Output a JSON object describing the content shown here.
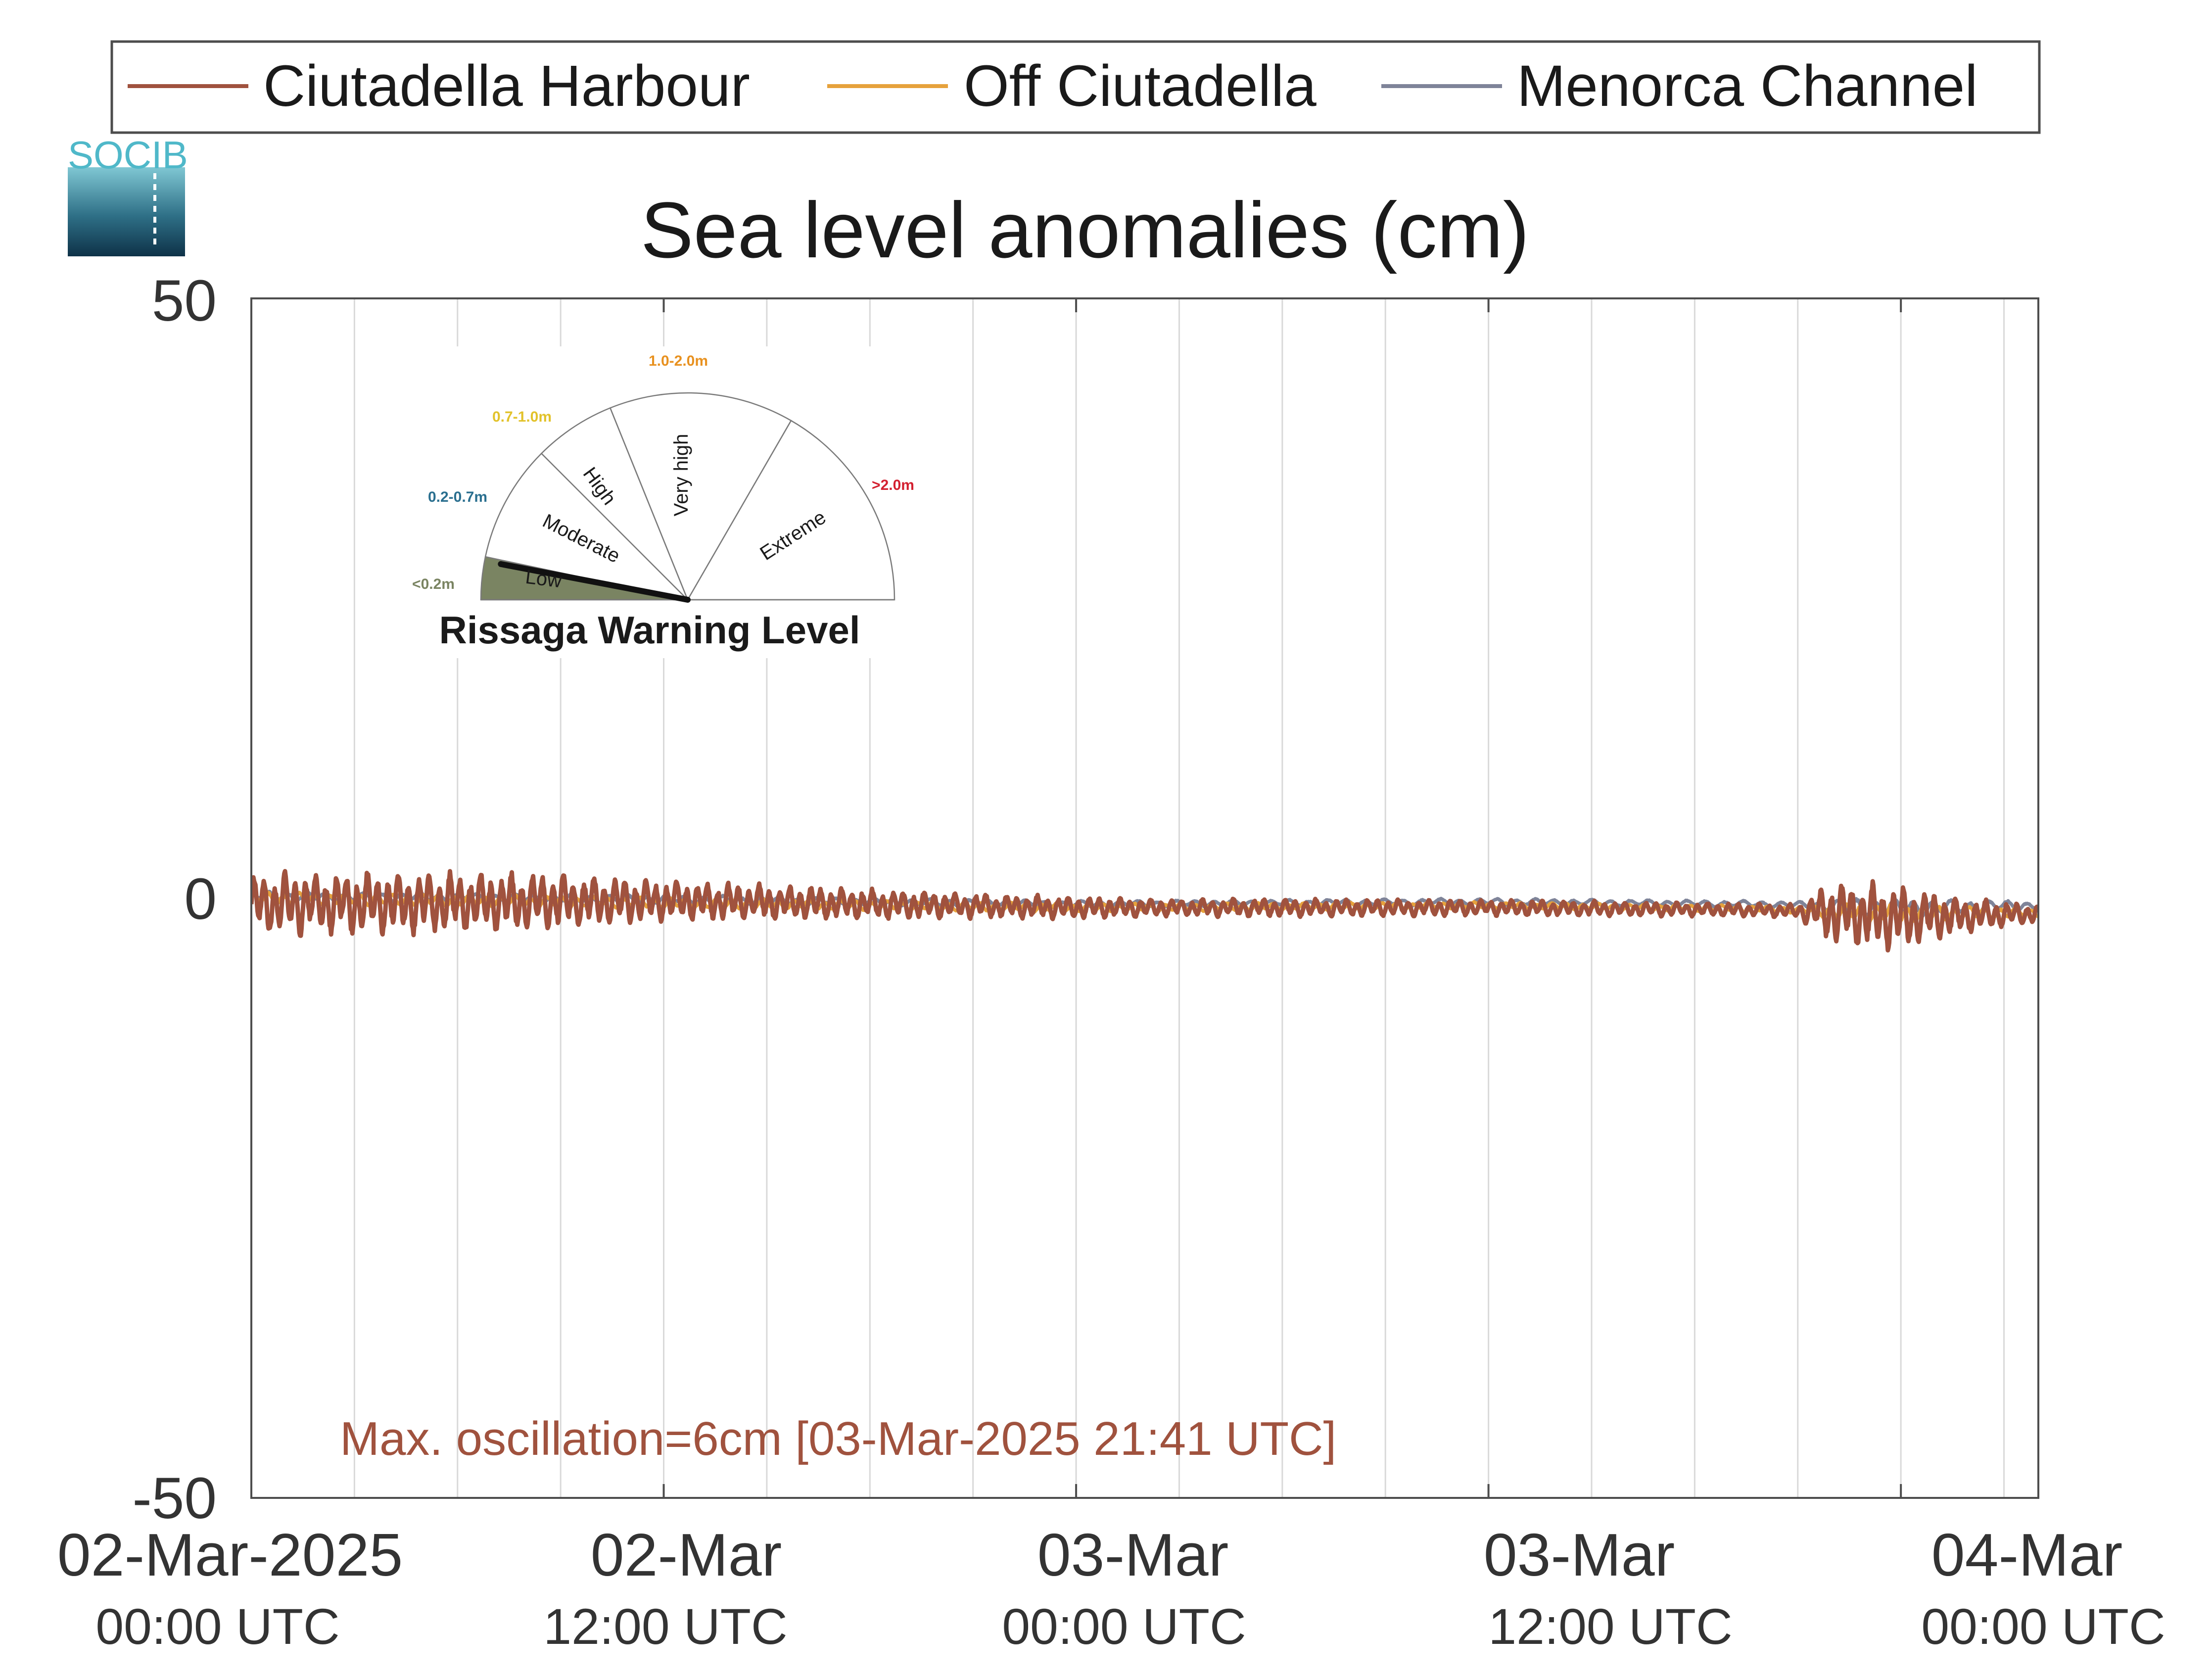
{
  "chart_data": {
    "type": "line",
    "title": "Sea level anomalies (cm)",
    "ylim": [
      -50,
      50
    ],
    "yticks": [
      "50",
      "0",
      "-50"
    ],
    "xlim_hours": [
      0,
      52
    ],
    "xticks": [
      {
        "date": "02-Mar-2025",
        "time": "00:00 UTC",
        "hour": 0
      },
      {
        "date": "02-Mar",
        "time": "12:00 UTC",
        "hour": 12
      },
      {
        "date": "03-Mar",
        "time": "00:00 UTC",
        "hour": 24
      },
      {
        "date": "03-Mar",
        "time": "12:00 UTC",
        "hour": 36
      },
      {
        "date": "04-Mar",
        "time": "00:00 UTC",
        "hour": 48
      }
    ],
    "grid": "vertical, every 3 hours",
    "legend_position": "top",
    "series": [
      {
        "name": "Ciutadella Harbour",
        "color": "#a0523e",
        "envelope_hours": [
          0,
          3,
          6,
          9,
          12,
          15,
          18,
          21,
          24,
          27,
          30,
          33,
          36,
          39,
          42,
          45,
          46,
          47,
          48,
          50,
          52
        ],
        "envelope_cm": [
          2.8,
          2.8,
          2.8,
          2.5,
          1.8,
          1.6,
          1.4,
          1.1,
          1.0,
          0.8,
          0.8,
          0.8,
          0.7,
          0.7,
          0.6,
          0.6,
          2.8,
          3.0,
          2.8,
          1.5,
          0.8
        ],
        "baseline_hours": [
          0,
          12,
          24,
          36,
          44,
          46,
          48,
          52
        ],
        "baseline_cm": [
          -0.5,
          -0.2,
          -0.8,
          -0.8,
          -1.0,
          -1.2,
          -1.6,
          -1.3
        ]
      },
      {
        "name": "Off Ciutadella",
        "color": "#e6a23c",
        "envelope_hours": [
          0,
          12,
          24,
          36,
          45,
          47,
          48,
          52
        ],
        "envelope_cm": [
          0.6,
          0.5,
          0.4,
          0.3,
          0.3,
          1.0,
          0.9,
          0.4
        ],
        "baseline_hours": [
          0,
          12,
          24,
          36,
          44,
          48,
          52
        ],
        "baseline_cm": [
          0.0,
          -0.4,
          -0.8,
          -0.6,
          -0.9,
          -1.3,
          -1.2
        ]
      },
      {
        "name": "Menorca Channel",
        "color": "#7f8499",
        "envelope_hours": [
          0,
          12,
          24,
          36,
          45,
          47,
          48,
          52
        ],
        "envelope_cm": [
          0.4,
          0.4,
          0.3,
          0.3,
          0.3,
          0.9,
          0.8,
          0.4
        ],
        "baseline_hours": [
          0,
          12,
          24,
          36,
          44,
          48,
          52
        ],
        "baseline_cm": [
          0.2,
          -0.1,
          -0.5,
          -0.3,
          -0.5,
          -0.8,
          -0.6
        ]
      }
    ],
    "annotation": "Max. oscillation=6cm [03-Mar-2025 21:41 UTC]"
  },
  "gauge": {
    "title": "Rissaga Warning Level",
    "current_level": "Low",
    "categories": [
      {
        "label": "Low",
        "range": "<0.2m",
        "color": "#7a8462",
        "active": true
      },
      {
        "label": "Moderate",
        "range": "0.2-0.7m",
        "color": "#2a6f8f",
        "active": false
      },
      {
        "label": "High",
        "range": "0.7-1.0m",
        "color": "#e2c22a",
        "active": false
      },
      {
        "label": "Very high",
        "range": "1.0-2.0m",
        "color": "#e8911f",
        "active": false
      },
      {
        "label": "Extreme",
        "range": ">2.0m",
        "color": "#d32030",
        "active": false
      }
    ]
  },
  "logo": {
    "text": "SOCIB",
    "color": "#4fb8c9"
  }
}
